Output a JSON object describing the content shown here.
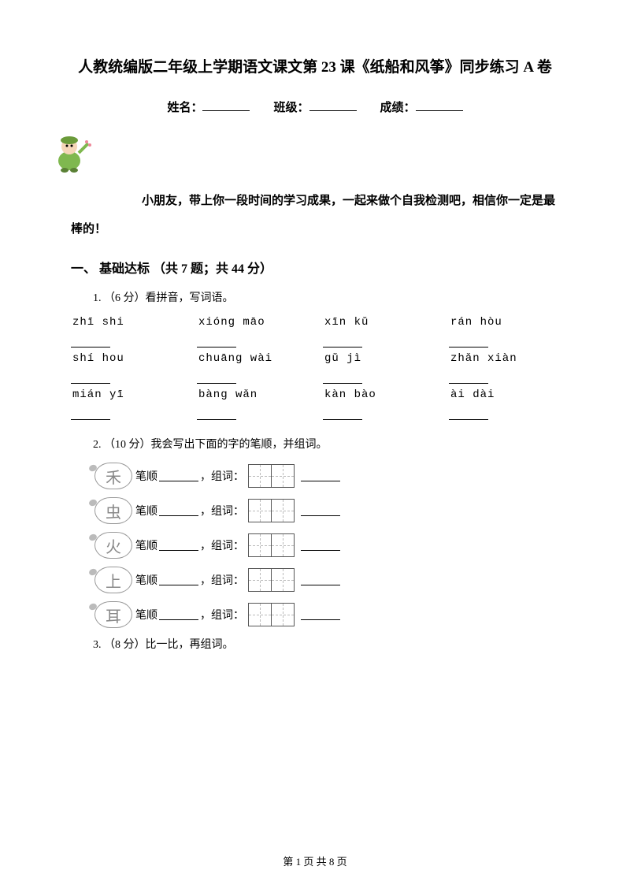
{
  "title": "人教统编版二年级上学期语文课文第 23 课《纸船和风筝》同步练习 A 卷",
  "info": {
    "name_label": "姓名：",
    "class_label": "班级：",
    "score_label": "成绩："
  },
  "intro": "小朋友，带上你一段时间的学习成果，一起来做个自我检测吧，相信你一定是最棒的！",
  "section1": {
    "heading": "一、 基础达标 （共 7 题；共 44 分）",
    "q1": {
      "label": "1. （6 分）看拼音，写词语。",
      "pinyin": [
        [
          "zhī  shi",
          "xióng  māo",
          "xīn  kǔ",
          "rán  hòu"
        ],
        [
          "shí  hou",
          "chuāng  wài",
          "gǔ  jì",
          "zhǎn  xiàn"
        ],
        [
          "mián  yī",
          "bàng  wǎn",
          "kàn  bào",
          "ài  dài"
        ]
      ]
    },
    "q2": {
      "label": "2. （10 分）我会写出下面的字的笔顺，并组词。",
      "chars": [
        "禾",
        "虫",
        "火",
        "上",
        "耳"
      ],
      "stroke_label": "笔顺",
      "group_label": "，组词："
    },
    "q3": {
      "label": "3. （8 分）比一比，再组词。"
    }
  },
  "footer": {
    "page_text": "第 1 页 共 8 页"
  },
  "colors": {
    "text": "#000000",
    "bg": "#ffffff",
    "faded": "#888888",
    "border": "#555555"
  }
}
